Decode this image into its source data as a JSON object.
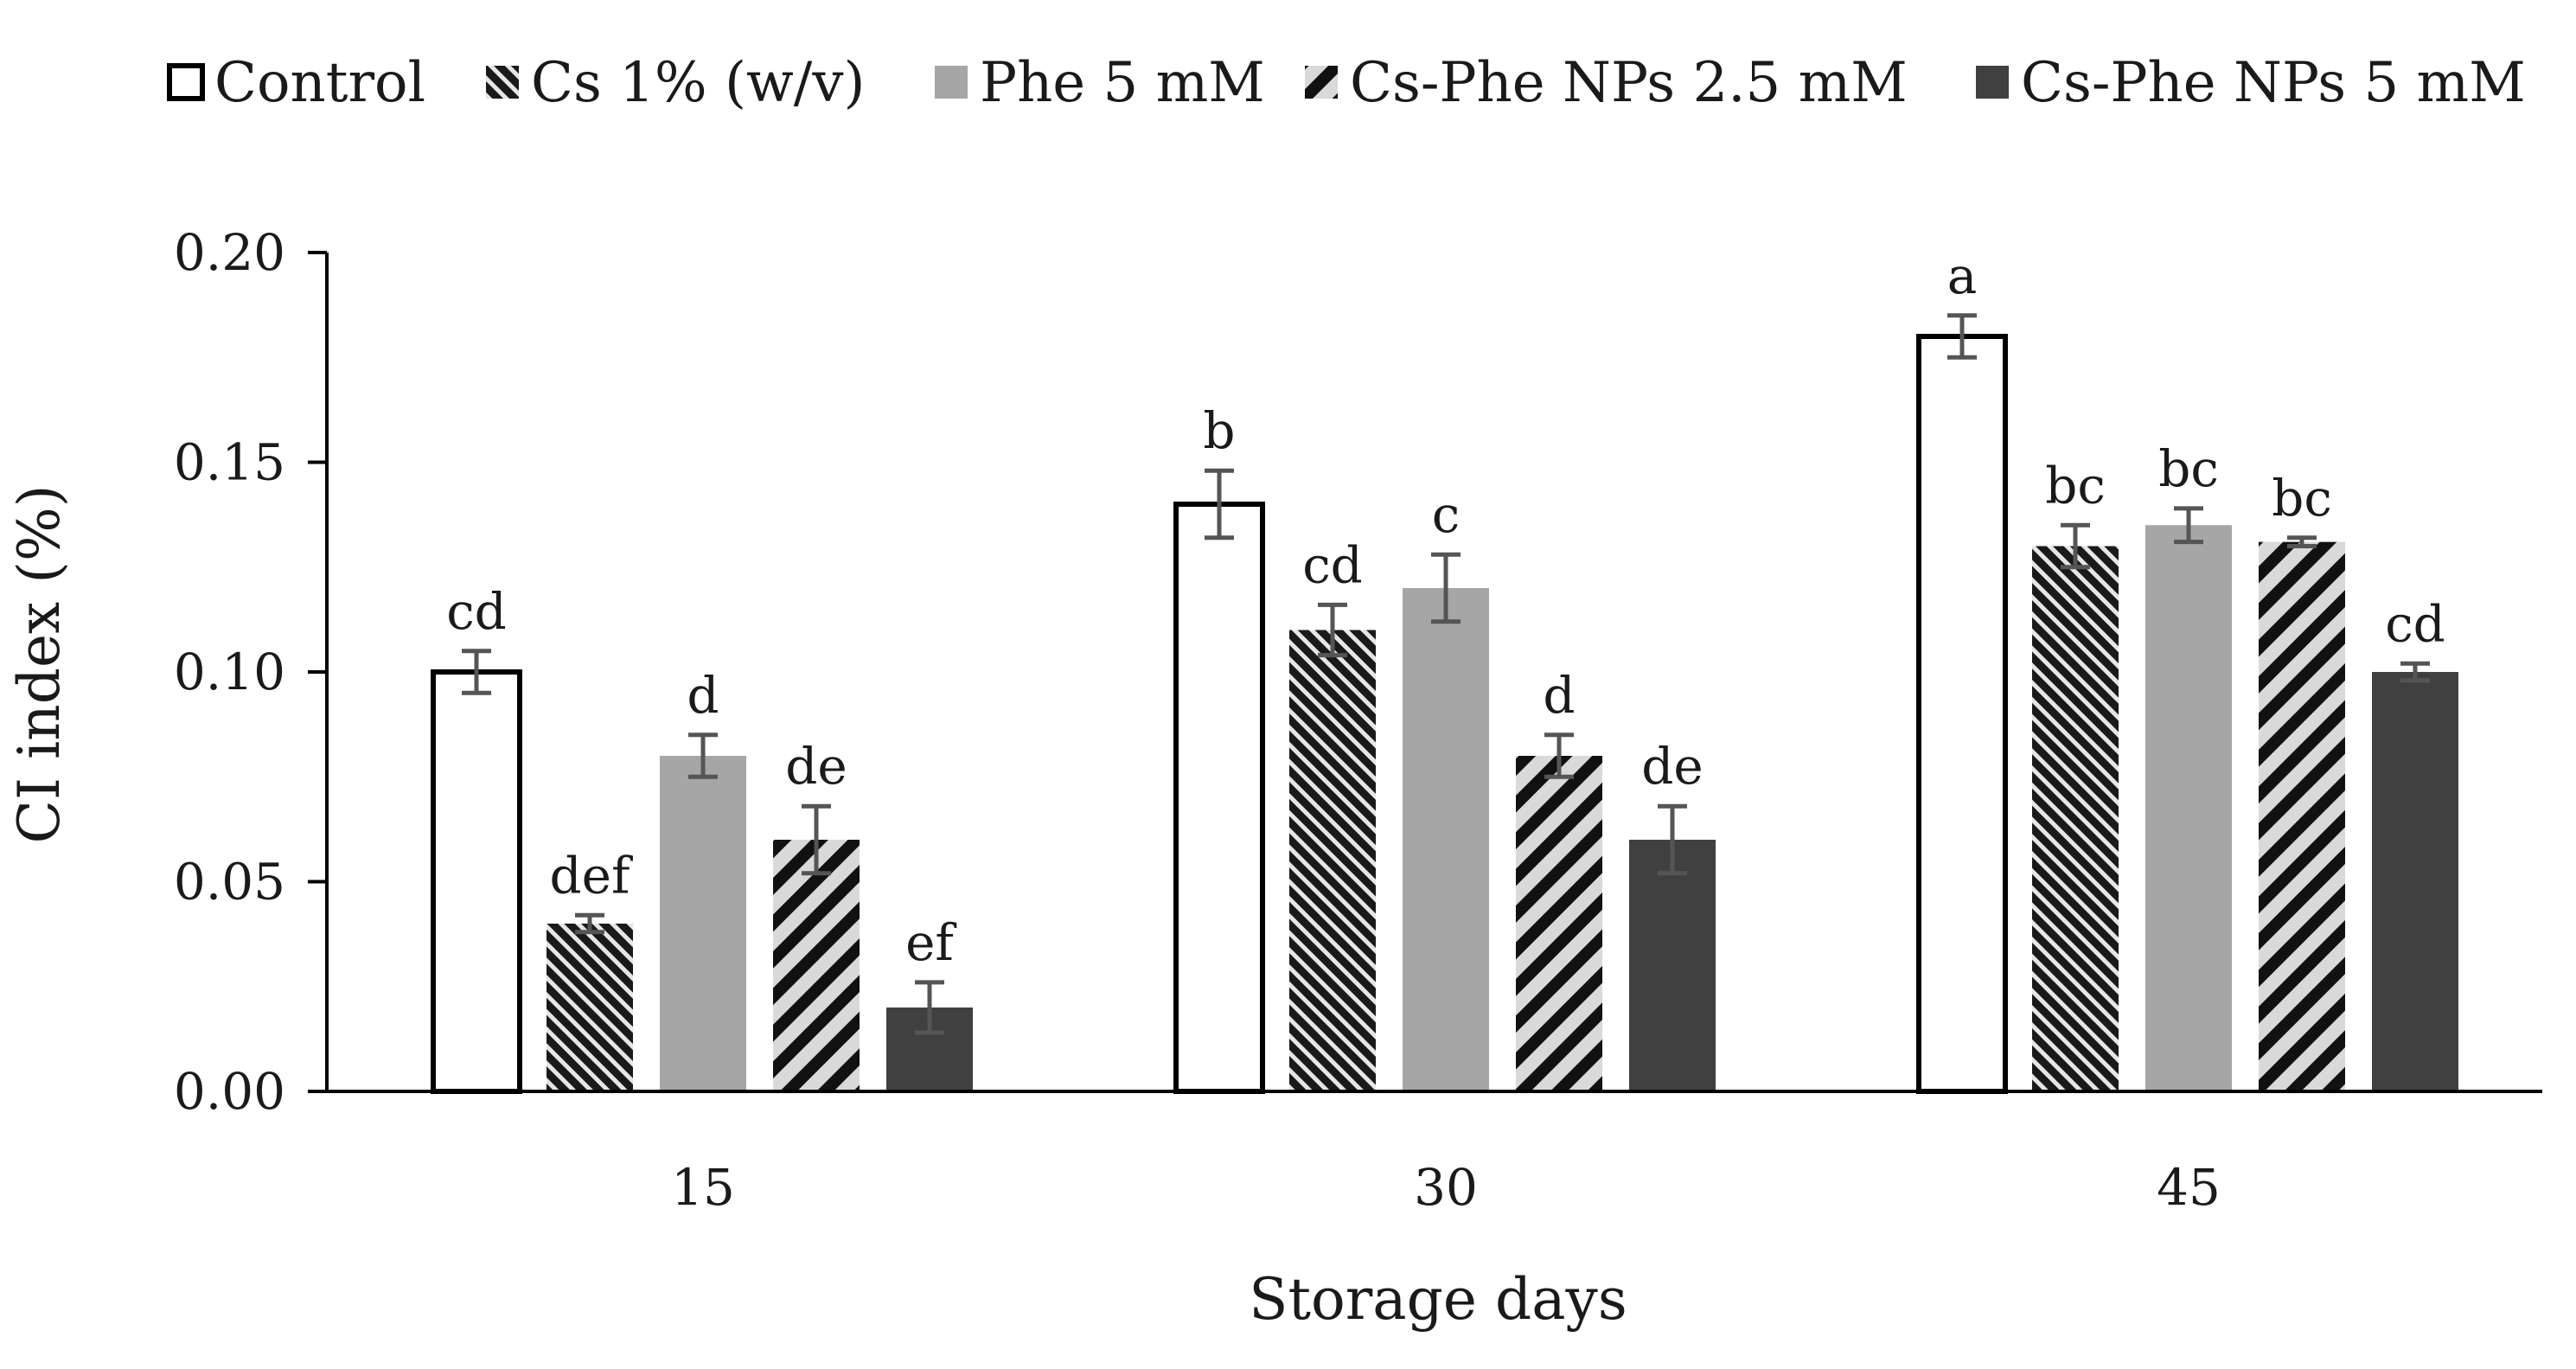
{
  "chart_data": {
    "type": "bar",
    "title": "",
    "xlabel": "Storage days",
    "ylabel": "CI index (%)",
    "categories": [
      "15",
      "30",
      "45"
    ],
    "ylim": [
      0,
      0.2
    ],
    "yticks": [
      "0.00",
      "0.05",
      "0.10",
      "0.15",
      "0.20"
    ],
    "ytick_values": [
      0,
      0.05,
      0.1,
      0.15,
      0.2
    ],
    "legend_position": "top",
    "series": [
      {
        "name": "Control",
        "pattern": "white",
        "values": [
          0.1,
          0.14,
          0.18
        ],
        "errors": [
          0.005,
          0.008,
          0.005
        ],
        "labels": [
          "cd",
          "b",
          "a"
        ]
      },
      {
        "name": "Cs 1% (w/v)",
        "pattern": "dark-hatch",
        "values": [
          0.04,
          0.11,
          0.13
        ],
        "errors": [
          0.002,
          0.006,
          0.005
        ],
        "labels": [
          "def",
          "cd",
          "bc"
        ]
      },
      {
        "name": "Phe 5 mM",
        "pattern": "grey",
        "values": [
          0.08,
          0.12,
          0.135
        ],
        "errors": [
          0.005,
          0.008,
          0.004
        ],
        "labels": [
          "d",
          "c",
          "bc"
        ]
      },
      {
        "name": "Cs-Phe NPs 2.5 mM",
        "pattern": "light-hatch",
        "values": [
          0.06,
          0.08,
          0.131
        ],
        "errors": [
          0.008,
          0.005,
          0.001
        ],
        "labels": [
          "de",
          "d",
          "bc"
        ]
      },
      {
        "name": "Cs-Phe NPs 5 mM",
        "pattern": "dark",
        "values": [
          0.02,
          0.06,
          0.1
        ],
        "errors": [
          0.006,
          0.008,
          0.002
        ],
        "labels": [
          "ef",
          "de",
          "cd"
        ]
      }
    ]
  },
  "colors": {
    "axis": "#000000",
    "error_bar": "#555555",
    "grey_bar": "#a6a6a6",
    "dark_bar": "#404040",
    "hatch_dark": "#1a1a1a",
    "hatch_light_bg": "#d9d9d9"
  }
}
